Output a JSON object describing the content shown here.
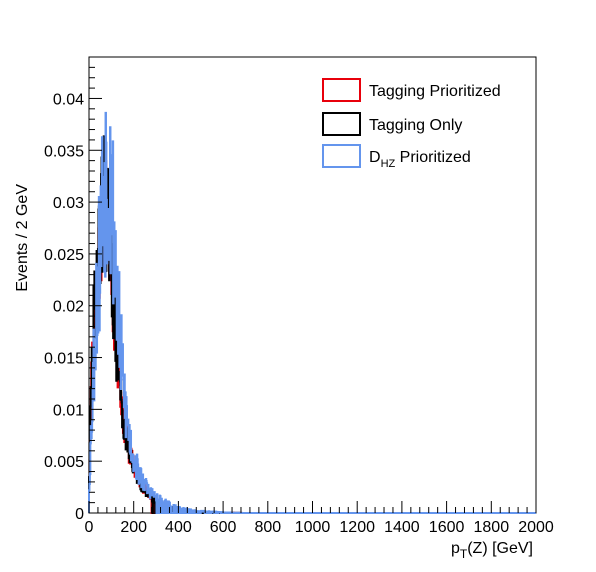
{
  "chart_data": {
    "type": "line",
    "style": "histogram-step",
    "xlabel": "p_T(Z) [GeV]",
    "xlabel_parts": {
      "main": "p",
      "sub": "T",
      "rest": "(Z) [GeV]"
    },
    "ylabel": "Events / 2 GeV",
    "xlim": [
      0,
      2000
    ],
    "ylim": [
      0,
      0.044
    ],
    "bin_width": 2,
    "x_ticks": [
      0,
      200,
      400,
      600,
      800,
      1000,
      1200,
      1400,
      1600,
      1800,
      2000
    ],
    "y_ticks": [
      0,
      0.005,
      0.01,
      0.015,
      0.02,
      0.025,
      0.03,
      0.035,
      0.04
    ],
    "y_tick_labels": [
      "0",
      "0.005",
      "0.01",
      "0.015",
      "0.02",
      "0.025",
      "0.03",
      "0.035",
      "0.04"
    ],
    "grid": false,
    "legend_position": "top-right",
    "series": [
      {
        "name": "Tagging Prioritized",
        "color": "#e8000b",
        "x": [
          0,
          10,
          20,
          30,
          40,
          50,
          60,
          70,
          80,
          90,
          100,
          110,
          120,
          130,
          140,
          150,
          160,
          170,
          180,
          190,
          200,
          220,
          240,
          260,
          280,
          300,
          350,
          400,
          450,
          500,
          600,
          700
        ],
        "y": [
          0.003,
          0.012,
          0.018,
          0.021,
          0.024,
          0.027,
          0.029,
          0.03,
          0.029,
          0.027,
          0.024,
          0.021,
          0.017,
          0.015,
          0.012,
          0.01,
          0.0085,
          0.007,
          0.006,
          0.0052,
          0.0045,
          0.0034,
          0.0026,
          0.002,
          0.0015,
          0.0011,
          0.0006,
          0.0003,
          0.00015,
          0.0001,
          3e-05,
          0
        ]
      },
      {
        "name": "Tagging Only",
        "color": "#000000",
        "x": [
          0,
          10,
          20,
          30,
          40,
          50,
          60,
          70,
          80,
          90,
          100,
          110,
          120,
          130,
          140,
          150,
          160,
          170,
          180,
          190,
          200,
          220,
          240,
          260,
          280,
          300,
          350,
          400,
          450,
          500,
          600,
          700
        ],
        "y": [
          0.003,
          0.012,
          0.018,
          0.021,
          0.0245,
          0.027,
          0.0295,
          0.0305,
          0.029,
          0.027,
          0.024,
          0.021,
          0.0165,
          0.0145,
          0.012,
          0.0095,
          0.0082,
          0.007,
          0.006,
          0.0051,
          0.0044,
          0.0033,
          0.0025,
          0.0019,
          0.0014,
          0.0011,
          0.0006,
          0.0003,
          0.00015,
          0.0001,
          3e-05,
          0
        ]
      },
      {
        "name": "D_HZ Prioritized",
        "name_parts": {
          "main": "D",
          "sub": "HZ",
          "rest": " Prioritized"
        },
        "color": "#6495ed",
        "x": [
          0,
          10,
          20,
          30,
          40,
          50,
          60,
          70,
          80,
          90,
          100,
          110,
          120,
          130,
          140,
          150,
          160,
          170,
          180,
          190,
          200,
          220,
          240,
          260,
          280,
          300,
          350,
          400,
          450,
          500,
          600,
          700
        ],
        "y": [
          0.002,
          0.008,
          0.014,
          0.019,
          0.022,
          0.026,
          0.03,
          0.033,
          0.034,
          0.033,
          0.031,
          0.028,
          0.024,
          0.02,
          0.016,
          0.013,
          0.011,
          0.009,
          0.0075,
          0.0063,
          0.0054,
          0.004,
          0.0031,
          0.0024,
          0.0019,
          0.0015,
          0.0009,
          0.0005,
          0.0003,
          0.00018,
          6e-05,
          0
        ]
      }
    ]
  }
}
